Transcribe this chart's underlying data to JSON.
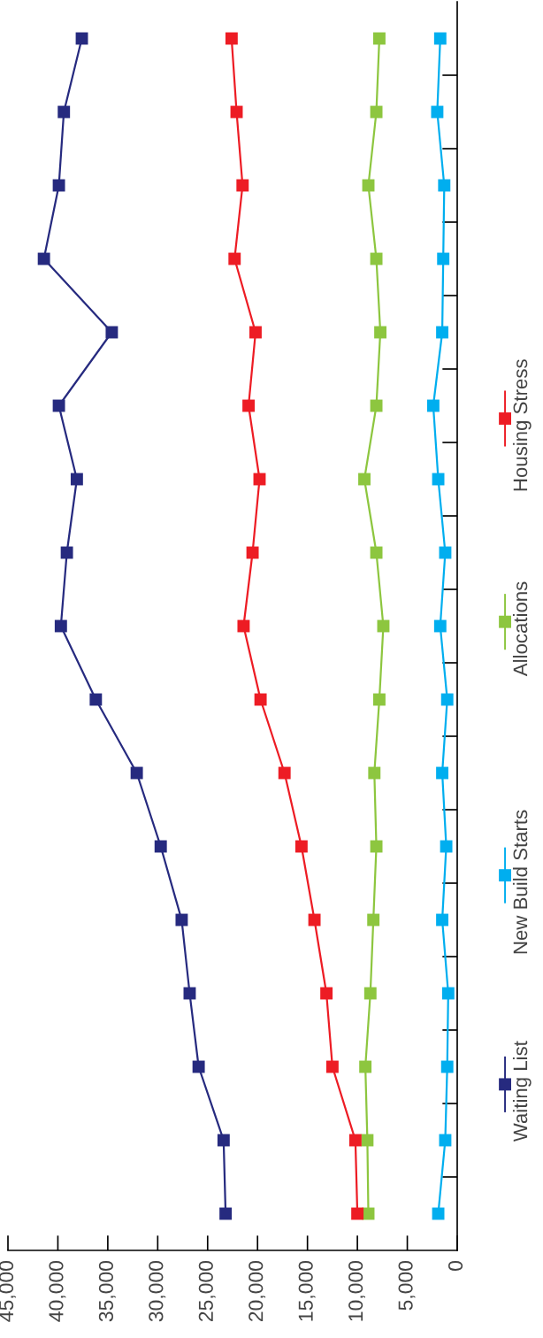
{
  "chart_data": {
    "type": "line",
    "orientation": "horizontal",
    "categories": [
      null,
      null,
      null,
      null,
      null,
      null,
      null,
      null,
      null,
      null,
      null,
      null,
      null,
      null,
      null,
      null,
      null
    ],
    "xlim": [
      45000,
      0
    ],
    "xticks": [
      {
        "value": 45000,
        "label": "45,000"
      },
      {
        "value": 40000,
        "label": "40,000"
      },
      {
        "value": 35000,
        "label": "35,000"
      },
      {
        "value": 30000,
        "label": "30,000"
      },
      {
        "value": 25000,
        "label": "25,000"
      },
      {
        "value": 20000,
        "label": "20,000"
      },
      {
        "value": 15000,
        "label": "15,000"
      },
      {
        "value": 10000,
        "label": "10,000"
      },
      {
        "value": 5000,
        "label": "5,000"
      },
      0
    ],
    "series": [
      {
        "name": "Waiting List",
        "color": "#262a7f",
        "values": [
          37600,
          39400,
          39900,
          41400,
          34600,
          39900,
          38100,
          39100,
          39700,
          36200,
          32100,
          29700,
          27600,
          26800,
          25900,
          23400,
          23200
        ]
      },
      {
        "name": "New Build Starts",
        "color": "#00aeef",
        "values": [
          1700,
          2000,
          1300,
          1400,
          1500,
          2400,
          1900,
          1200,
          1700,
          1000,
          1500,
          1100,
          1500,
          900,
          1000,
          1200,
          1900
        ]
      },
      {
        "name": "Allocations",
        "color": "#8dc63f",
        "values": [
          7800,
          8100,
          8900,
          8100,
          7700,
          8100,
          9300,
          8100,
          7400,
          7800,
          8300,
          8100,
          8400,
          8700,
          9200,
          9000,
          8900
        ]
      },
      {
        "name": "Housing Stress",
        "color": "#ed1c24",
        "values": [
          22600,
          22100,
          21500,
          22300,
          20200,
          20900,
          19800,
          20500,
          21400,
          19700,
          17300,
          15600,
          14300,
          13100,
          12500,
          10200,
          10000
        ]
      }
    ],
    "marker": "square",
    "line_style": "solid",
    "legend": "right",
    "grid": false
  }
}
